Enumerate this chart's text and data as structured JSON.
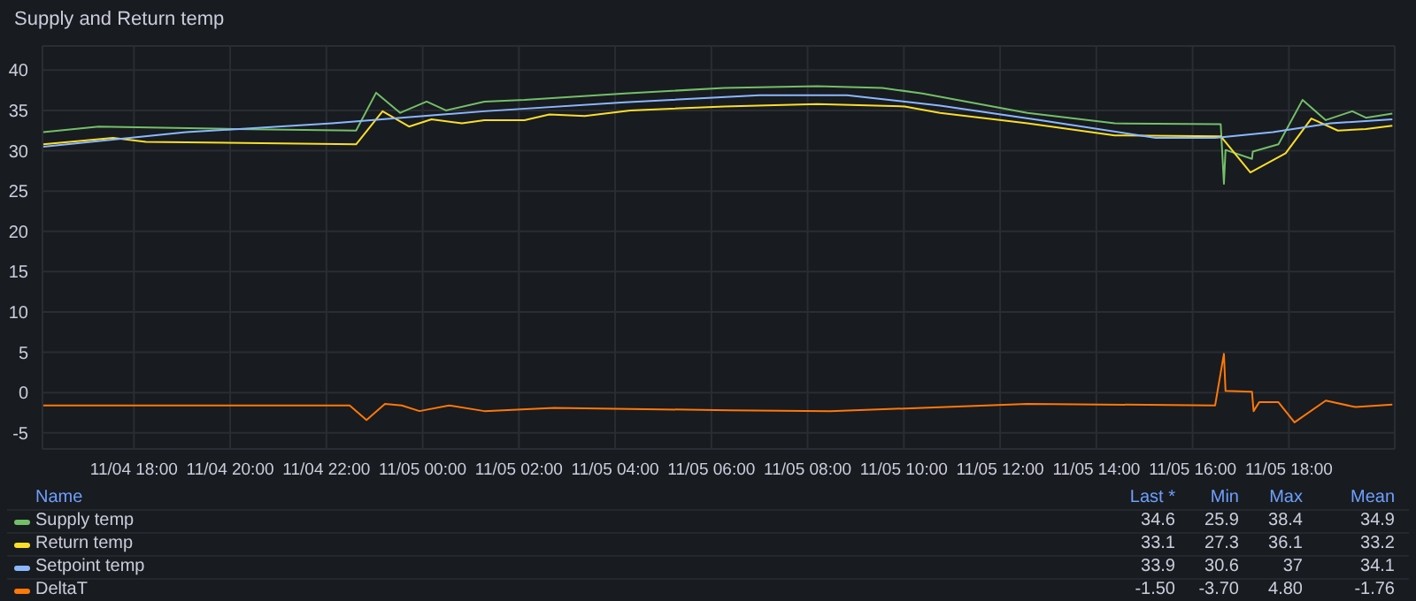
{
  "chart_data": {
    "type": "line",
    "title": "Supply and Return temp",
    "xlim": [
      "--11-04T16:06",
      "--11-05T20:12"
    ],
    "xticks": [
      {
        "value": "--11-04T18:00",
        "label": "11/04 18:00"
      },
      {
        "value": "--11-04T20:00",
        "label": "11/04 20:00"
      },
      {
        "value": "--11-04T22:00",
        "label": "11/04 22:00"
      },
      {
        "value": "--11-05T00:00",
        "label": "11/05 00:00"
      },
      {
        "value": "--11-05T02:00",
        "label": "11/05 02:00"
      },
      {
        "value": "--11-05T04:00",
        "label": "11/05 04:00"
      },
      {
        "value": "--11-05T06:00",
        "label": "11/05 06:00"
      },
      {
        "value": "--11-05T08:00",
        "label": "11/05 08:00"
      },
      {
        "value": "--11-05T10:00",
        "label": "11/05 10:00"
      },
      {
        "value": "--11-05T12:00",
        "label": "11/05 12:00"
      },
      {
        "value": "--11-05T14:00",
        "label": "11/05 14:00"
      },
      {
        "value": "--11-05T16:00",
        "label": "11/05 16:00"
      },
      {
        "value": "--11-05T18:00",
        "label": "11/05 18:00"
      }
    ],
    "ylim": [
      -7,
      43
    ],
    "yticks": [
      -5,
      0,
      5,
      10,
      15,
      20,
      25,
      30,
      35,
      40
    ],
    "grid": true,
    "legend": "bottom",
    "legend_title": "Name",
    "marker": "none",
    "line_style": "solid",
    "annotations": [
      "Last *",
      "Min",
      "Max",
      "Mean",
      "34.6",
      "25.9",
      "38.4",
      "34.9",
      "33.1",
      "27.3",
      "36.1",
      "33.2",
      "33.9",
      "30.6",
      "37",
      "34.1",
      "-1.50",
      "-3.70",
      "4.80",
      "-1.76"
    ],
    "series": [
      {
        "name": "Supply temp",
        "color": "#73bf69",
        "x": [
          "--11-04T16:07",
          "--11-04T17:16",
          "--11-04T20:05",
          "--11-04T22:37",
          "--11-04T23:02",
          "--11-04T23:32",
          "--11-05T00:05",
          "--11-05T00:29",
          "--11-05T01:17",
          "--11-05T02:07",
          "--11-05T04:12",
          "--11-05T06:16",
          "--11-05T08:12",
          "--11-05T09:33",
          "--11-05T10:23",
          "--11-05T12:34",
          "--11-05T14:23",
          "--11-05T16:35",
          "--11-05T16:39",
          "--11-05T16:41",
          "--11-05T17:14",
          "--11-05T17:15",
          "--11-05T17:47",
          "--11-05T18:17",
          "--11-05T18:46",
          "--11-05T19:19",
          "--11-05T19:36",
          "--11-05T20:09"
        ],
        "values": [
          32.3,
          33.0,
          32.7,
          32.5,
          37.2,
          34.7,
          36.1,
          35.0,
          36.1,
          36.3,
          37.1,
          37.8,
          38.0,
          37.8,
          37.1,
          34.7,
          33.4,
          33.3,
          25.9,
          30.1,
          29.0,
          29.9,
          30.8,
          36.3,
          33.8,
          34.9,
          34.1,
          34.6
        ]
      },
      {
        "name": "Return temp",
        "color": "#fade2a",
        "x": [
          "--11-04T16:07",
          "--11-04T17:34",
          "--11-04T18:15",
          "--11-04T22:37",
          "--11-04T23:10",
          "--11-04T23:43",
          "--11-05T00:11",
          "--11-05T00:49",
          "--11-05T01:17",
          "--11-05T02:07",
          "--11-05T02:38",
          "--11-05T03:22",
          "--11-05T04:19",
          "--11-05T06:16",
          "--11-05T08:12",
          "--11-05T10:01",
          "--11-05T10:45",
          "--11-05T12:34",
          "--11-05T14:23",
          "--11-05T16:35",
          "--11-05T17:12",
          "--11-05T17:56",
          "--11-05T18:28",
          "--11-05T19:01",
          "--11-05T19:36",
          "--11-05T20:09"
        ],
        "values": [
          30.8,
          31.6,
          31.1,
          30.8,
          34.9,
          33.0,
          33.9,
          33.4,
          33.8,
          33.8,
          34.5,
          34.3,
          35.0,
          35.5,
          35.8,
          35.5,
          34.7,
          33.4,
          31.9,
          31.8,
          27.3,
          29.7,
          34.0,
          32.5,
          32.7,
          33.1
        ]
      },
      {
        "name": "Setpoint temp",
        "color": "#8ab8ff",
        "x": [
          "--11-04T16:07",
          "--11-04T19:05",
          "--11-04T22:07",
          "--11-05T01:17",
          "--11-05T04:12",
          "--11-05T07:00",
          "--11-05T08:49",
          "--11-05T10:45",
          "--11-05T12:50",
          "--11-05T15:14",
          "--11-05T16:28",
          "--11-05T17:40",
          "--11-05T18:52",
          "--11-05T20:09"
        ],
        "values": [
          30.5,
          32.3,
          33.4,
          34.9,
          36.0,
          36.9,
          36.9,
          35.6,
          33.8,
          31.6,
          31.6,
          32.3,
          33.4,
          33.9
        ]
      },
      {
        "name": "DeltaT",
        "color": "#ff780a",
        "x": [
          "--11-04T16:07",
          "--11-04T22:29",
          "--11-04T22:50",
          "--11-04T23:13",
          "--11-04T23:34",
          "--11-04T23:56",
          "--11-05T00:33",
          "--11-05T01:17",
          "--11-05T02:44",
          "--11-05T06:23",
          "--11-05T08:28",
          "--11-05T10:23",
          "--11-05T12:34",
          "--11-05T16:28",
          "--11-05T16:39",
          "--11-05T16:41",
          "--11-05T17:14",
          "--11-05T17:16",
          "--11-05T17:23",
          "--11-05T17:47",
          "--11-05T18:07",
          "--11-05T18:46",
          "--11-05T19:23",
          "--11-05T20:09"
        ],
        "values": [
          -1.6,
          -1.6,
          -3.4,
          -1.4,
          -1.6,
          -2.3,
          -1.6,
          -2.3,
          -1.9,
          -2.2,
          -2.3,
          -1.9,
          -1.4,
          -1.6,
          4.8,
          0.2,
          0.1,
          -2.3,
          -1.2,
          -1.2,
          -3.7,
          -1.0,
          -1.8,
          -1.5
        ]
      }
    ]
  }
}
